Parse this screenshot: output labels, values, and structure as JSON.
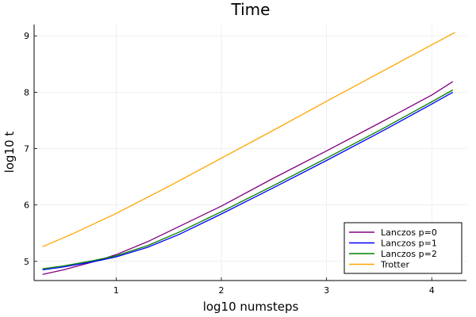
{
  "chart_data": {
    "type": "line",
    "title": "Time",
    "xlabel": "log10 numsteps",
    "ylabel": "log10 t",
    "xlim": [
      0.22,
      4.33
    ],
    "ylim": [
      4.66,
      9.2
    ],
    "xticks": [
      "1",
      "2",
      "3",
      "4"
    ],
    "yticks": [
      "5",
      "6",
      "7",
      "8",
      "9"
    ],
    "grid": true,
    "legend_position": "bottom-right",
    "series": [
      {
        "name": "Lanczos p=0",
        "color": "#800080",
        "x": [
          0.3,
          0.5,
          0.8,
          1.0,
          1.3,
          1.6,
          2.0,
          2.5,
          3.0,
          3.5,
          4.0,
          4.2
        ],
        "y": [
          4.77,
          4.85,
          5.0,
          5.12,
          5.35,
          5.62,
          5.98,
          6.48,
          6.96,
          7.45,
          7.95,
          8.19
        ]
      },
      {
        "name": "Lanczos p=1",
        "color": "#0000ff",
        "x": [
          0.3,
          0.5,
          0.8,
          1.0,
          1.3,
          1.6,
          2.0,
          2.5,
          3.0,
          3.5,
          4.0,
          4.2
        ],
        "y": [
          4.85,
          4.9,
          5.0,
          5.08,
          5.25,
          5.48,
          5.84,
          6.31,
          6.79,
          7.28,
          7.79,
          8.0
        ]
      },
      {
        "name": "Lanczos p=2",
        "color": "#008000",
        "x": [
          0.3,
          0.5,
          0.8,
          1.0,
          1.3,
          1.6,
          2.0,
          2.5,
          3.0,
          3.5,
          4.0,
          4.2
        ],
        "y": [
          4.87,
          4.92,
          5.02,
          5.1,
          5.28,
          5.52,
          5.88,
          6.35,
          6.83,
          7.32,
          7.83,
          8.04
        ]
      },
      {
        "name": "Trotter",
        "color": "#ffa500",
        "x": [
          0.3,
          0.6,
          1.0,
          1.5,
          2.0,
          2.5,
          3.0,
          3.5,
          4.0,
          4.22
        ],
        "y": [
          5.26,
          5.5,
          5.85,
          6.33,
          6.83,
          7.33,
          7.84,
          8.34,
          8.84,
          9.06
        ]
      }
    ]
  }
}
